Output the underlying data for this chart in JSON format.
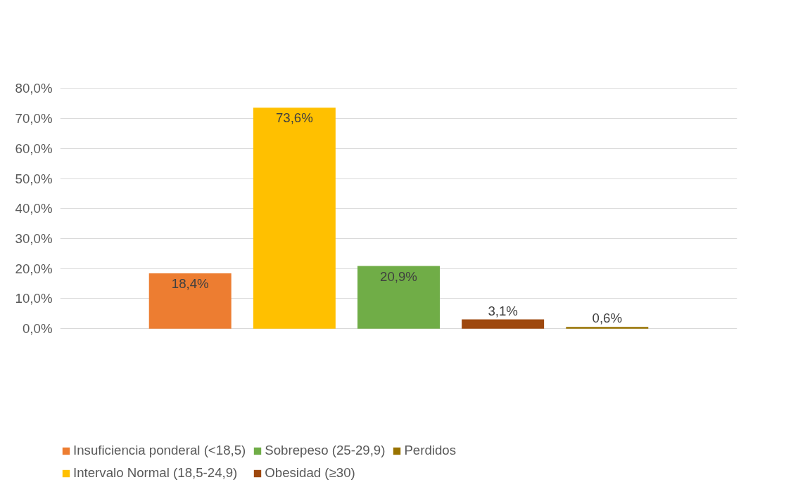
{
  "chart_data": {
    "type": "bar",
    "categories": [
      null
    ],
    "series": [
      {
        "name": "Insuficiencia ponderal (<18,5)",
        "color": "#ed7d31",
        "values": [
          18.4
        ],
        "value_labels": [
          "18,4%"
        ]
      },
      {
        "name": "Intervalo Normal (18,5-24,9)",
        "color": "#ffc000",
        "values": [
          73.6
        ],
        "value_labels": [
          "73,6%"
        ]
      },
      {
        "name": "Sobrepeso (25-29,9)",
        "color": "#70ad47",
        "values": [
          20.9
        ],
        "value_labels": [
          "20,9%"
        ]
      },
      {
        "name": "Obesidad (≥30)",
        "color": "#9e480e",
        "values": [
          3.1
        ],
        "value_labels": [
          "3,1%"
        ]
      },
      {
        "name": "Perdidos",
        "color": "#997300",
        "values": [
          0.6
        ],
        "value_labels": [
          "0,6%"
        ]
      }
    ],
    "ylim": [
      0,
      80
    ],
    "yticks": [
      {
        "value": 0,
        "label": "0,0%"
      },
      {
        "value": 10,
        "label": "10,0%"
      },
      {
        "value": 20,
        "label": "20,0%"
      },
      {
        "value": 30,
        "label": "30,0%"
      },
      {
        "value": 40,
        "label": "40,0%"
      },
      {
        "value": 50,
        "label": "50,0%"
      },
      {
        "value": 60,
        "label": "60,0%"
      },
      {
        "value": 70,
        "label": "70,0%"
      },
      {
        "value": 80,
        "label": "80,0%"
      }
    ],
    "grid": "y",
    "legend": "bottom"
  }
}
